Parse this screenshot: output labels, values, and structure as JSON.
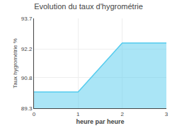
{
  "chart_data": {
    "type": "area",
    "title": "Evolution du taux d'hygrométrie",
    "x_label": "heure par heure",
    "y_label": "Taux hygromètrie %",
    "x": [
      0,
      1,
      2,
      3
    ],
    "values": [
      90.1,
      90.1,
      92.5,
      92.5
    ],
    "color": "#55ccee",
    "xlim": [
      0,
      3
    ],
    "ylim": [
      89.3,
      93.7
    ],
    "xticks": [
      0,
      1,
      2,
      3
    ],
    "yticks": [
      89.3,
      90.8,
      92.2,
      93.7
    ],
    "grid": true
  }
}
